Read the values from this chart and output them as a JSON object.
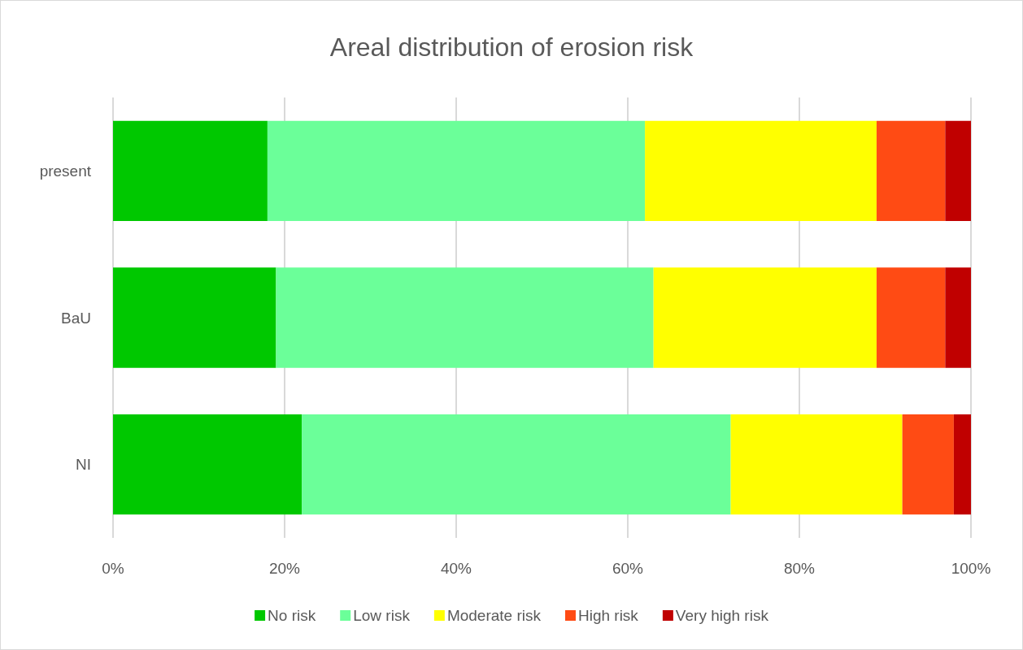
{
  "chart_data": {
    "type": "bar",
    "title": "Areal distribution of erosion risk",
    "orientation": "horizontal",
    "stacked": true,
    "categories": [
      "present",
      "BaU",
      "NI"
    ],
    "series": [
      {
        "name": "No risk",
        "color": "#00c800",
        "values": [
          18,
          19,
          22
        ]
      },
      {
        "name": "Low risk",
        "color": "#6bff99",
        "values": [
          44,
          44,
          50
        ]
      },
      {
        "name": "Moderate risk",
        "color": "#ffff00",
        "values": [
          27,
          26,
          20
        ]
      },
      {
        "name": "High risk",
        "color": "#ff4b14",
        "values": [
          8,
          8,
          6
        ]
      },
      {
        "name": "Very high risk",
        "color": "#c00000",
        "values": [
          3,
          3,
          2
        ]
      }
    ],
    "xlim": [
      0,
      100
    ],
    "xticks": [
      {
        "value": 0,
        "label": "0%"
      },
      {
        "value": 20,
        "label": "20%"
      },
      {
        "value": 40,
        "label": "40%"
      },
      {
        "value": 60,
        "label": "60%"
      },
      {
        "value": 80,
        "label": "80%"
      },
      {
        "value": 100,
        "label": "100%"
      }
    ],
    "grid": "x",
    "legend": "bottom"
  }
}
